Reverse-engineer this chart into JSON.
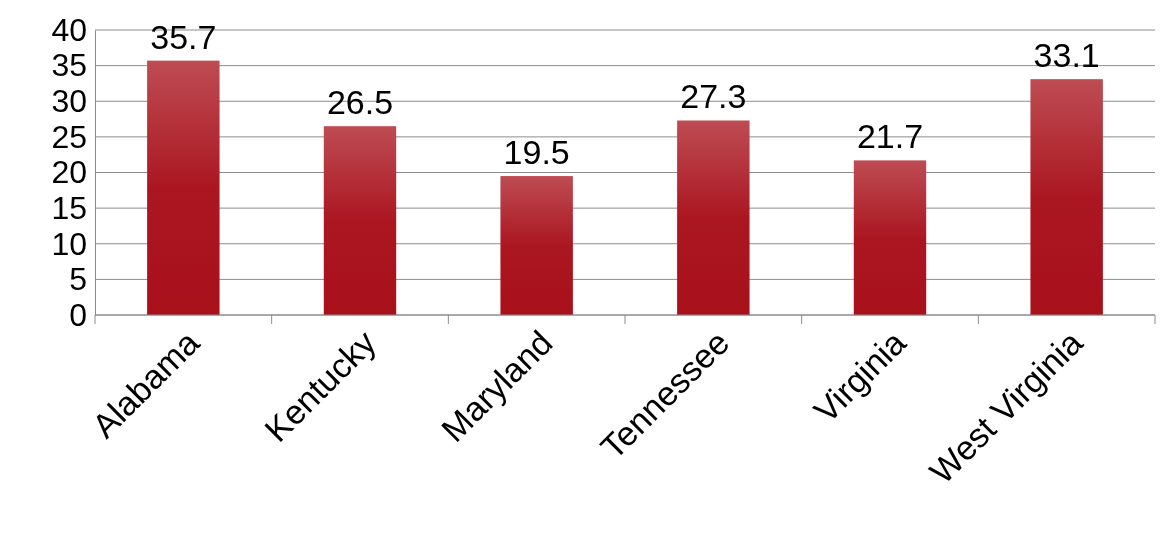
{
  "chart_data": {
    "type": "bar",
    "categories": [
      "Alabama",
      "Kentucky",
      "Maryland",
      "Tennessee",
      "Virginia",
      "West Virginia"
    ],
    "values": [
      35.7,
      26.5,
      19.5,
      27.3,
      21.7,
      33.1
    ],
    "color": "#a8101a",
    "ylim": [
      0,
      40
    ],
    "yticks": [
      0,
      5,
      10,
      15,
      20,
      25,
      30,
      35,
      40
    ],
    "grid": "y",
    "data_labels": true
  }
}
